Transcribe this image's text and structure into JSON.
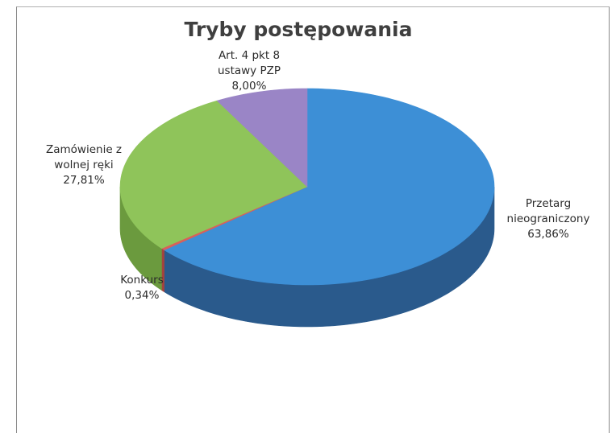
{
  "chart_data": {
    "type": "pie",
    "title": "Tryby postępowania",
    "slices": [
      {
        "name": "Przetarg nieograniczony",
        "value": 63.86,
        "label_lines": [
          "Przetarg",
          "nieograniczony",
          "63,86%"
        ],
        "color": "#3d8fd6",
        "side_color": "#2a5a8c"
      },
      {
        "name": "Konkurs",
        "value": 0.34,
        "label_lines": [
          "Konkurs",
          "0,34%"
        ],
        "color": "#d9605a",
        "side_color": "#a3443f"
      },
      {
        "name": "Zamówienie z wolnej ręki",
        "value": 27.81,
        "label_lines": [
          "Zamówienie z",
          "wolnej ręki",
          "27,81%"
        ],
        "color": "#8fc45a",
        "side_color": "#6b9a3e"
      },
      {
        "name": "Art. 4 pkt 8 ustawy PZP",
        "value": 8.0,
        "label_lines": [
          "Art. 4 pkt 8",
          "ustawy PZP",
          "8,00%"
        ],
        "color": "#9a85c6",
        "side_color": "#6f5f96"
      }
    ],
    "start": "12 o'clock",
    "direction": "clockwise",
    "style": "3d-tilted",
    "legend": "none"
  }
}
